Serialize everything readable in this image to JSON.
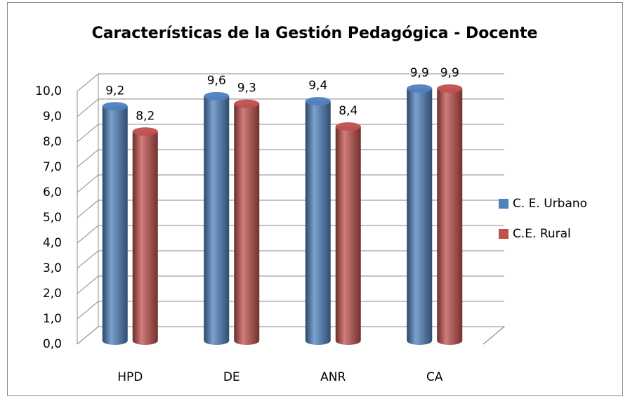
{
  "chart_data": {
    "type": "bar3d",
    "title": "Características de la Gestión Pedagógica - Docente",
    "categories": [
      "HPD",
      "DE",
      "ANR",
      "CA"
    ],
    "series": [
      {
        "name": "C. E. Urbano",
        "color": "#4f81bd",
        "values": [
          9.2,
          9.6,
          9.4,
          9.9
        ],
        "value_labels": [
          "9,2",
          "9,6",
          "9,4",
          "9,9"
        ]
      },
      {
        "name": "C.E. Rural",
        "color": "#c0504d",
        "values": [
          8.2,
          9.3,
          8.4,
          9.9
        ],
        "value_labels": [
          "8,2",
          "9,3",
          "8,4",
          "9,9"
        ]
      }
    ],
    "ylim": [
      0,
      10
    ],
    "yticks": [
      {
        "value": 0,
        "label": "0,0"
      },
      {
        "value": 1,
        "label": "1,0"
      },
      {
        "value": 2,
        "label": "2,0"
      },
      {
        "value": 3,
        "label": "3,0"
      },
      {
        "value": 4,
        "label": "4,0"
      },
      {
        "value": 5,
        "label": "5,0"
      },
      {
        "value": 6,
        "label": "6,0"
      },
      {
        "value": 7,
        "label": "7,0"
      },
      {
        "value": 8,
        "label": "8,0"
      },
      {
        "value": 9,
        "label": "9,0"
      },
      {
        "value": 10,
        "label": "10,0"
      }
    ],
    "grid": true,
    "legend": "right"
  }
}
